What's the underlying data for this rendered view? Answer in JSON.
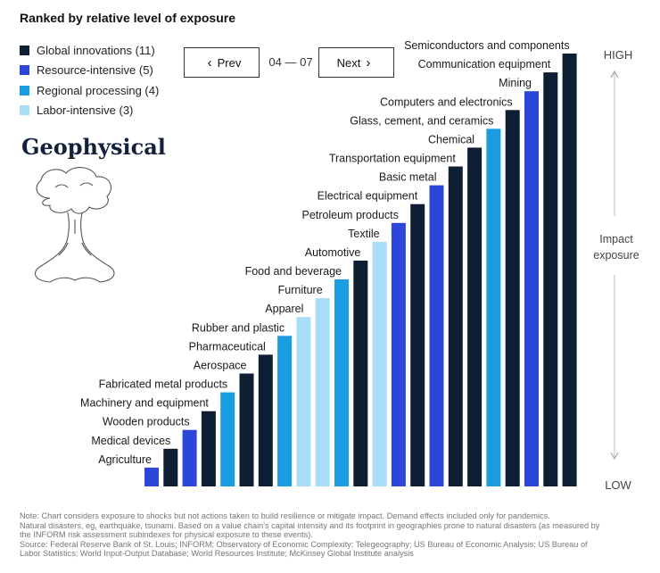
{
  "header": {
    "title": "Ranked by relative level of exposure"
  },
  "legend": [
    {
      "label": "Global innovations (11)",
      "color": "#0e1f33"
    },
    {
      "label": "Resource-intensive (5)",
      "color": "#2b46d8"
    },
    {
      "label": "Regional processing (4)",
      "color": "#1a9ce0"
    },
    {
      "label": "Labor-intensive (3)",
      "color": "#a7ddf5"
    }
  ],
  "nav": {
    "prev_label": "Prev",
    "next_label": "Next",
    "page_indicator": "04 — 07",
    "prev_icon": "chevron-left-icon",
    "next_icon": "chevron-right-icon"
  },
  "section": {
    "title": "Geophysical",
    "illustration_icon": "mushroom-cloud-icon"
  },
  "chart_data": {
    "type": "bar",
    "categories": [
      "Agriculture",
      "Medical devices",
      "Wooden products",
      "Machinery and equipment",
      "Fabricated metal products",
      "Aerospace",
      "Pharmaceutical",
      "Rubber and plastic",
      "Apparel",
      "Furniture",
      "Food and beverage",
      "Automotive",
      "Textile",
      "Petroleum products",
      "Electrical equipment",
      "Basic metal",
      "Transportation equipment",
      "Chemical",
      "Glass, cement, and ceramics",
      "Computers and electronics",
      "Mining",
      "Communication equipment",
      "Semiconductors and components"
    ],
    "values": [
      1,
      2,
      3,
      4,
      5,
      6,
      7,
      8,
      9,
      10,
      11,
      12,
      13,
      14,
      15,
      16,
      17,
      18,
      19,
      20,
      21,
      22,
      23
    ],
    "groups": [
      "Resource-intensive",
      "Global innovations",
      "Resource-intensive",
      "Global innovations",
      "Regional processing",
      "Global innovations",
      "Global innovations",
      "Regional processing",
      "Labor-intensive",
      "Labor-intensive",
      "Regional processing",
      "Global innovations",
      "Labor-intensive",
      "Resource-intensive",
      "Global innovations",
      "Resource-intensive",
      "Global innovations",
      "Global innovations",
      "Regional processing",
      "Global innovations",
      "Resource-intensive",
      "Global innovations",
      "Global innovations"
    ],
    "group_colors": {
      "Global innovations": "#0e1f33",
      "Resource-intensive": "#2b46d8",
      "Regional processing": "#1a9ce0",
      "Labor-intensive": "#a7ddf5"
    },
    "axis": {
      "high_label": "HIGH",
      "low_label": "LOW",
      "axis_label": [
        "Impact",
        "exposure"
      ]
    },
    "ylim": [
      0,
      23
    ],
    "grid": false
  },
  "notes": [
    "Note: Chart considers exposure to shocks but not actions taken to build resilience or mitigate impact. Demand effects included only for pandemics.",
    "Natural disasters, eg, earthquake, tsunami. Based on a value chain's capital intensity and its footprint in geographies prone to natural disasters (as measured by",
    "the INFORM risk assessment subindexes for physical exposure to these events).",
    "Source: Federal Reserve Bank of St. Louis; INFORM; Observatory of Economic Complexity; Telegeography; US Bureau of Economic Analysis; US Bureau of",
    "Labor Statistics; World Input-Output Database; World Resources Institute; McKinsey Global Institute analysis"
  ]
}
